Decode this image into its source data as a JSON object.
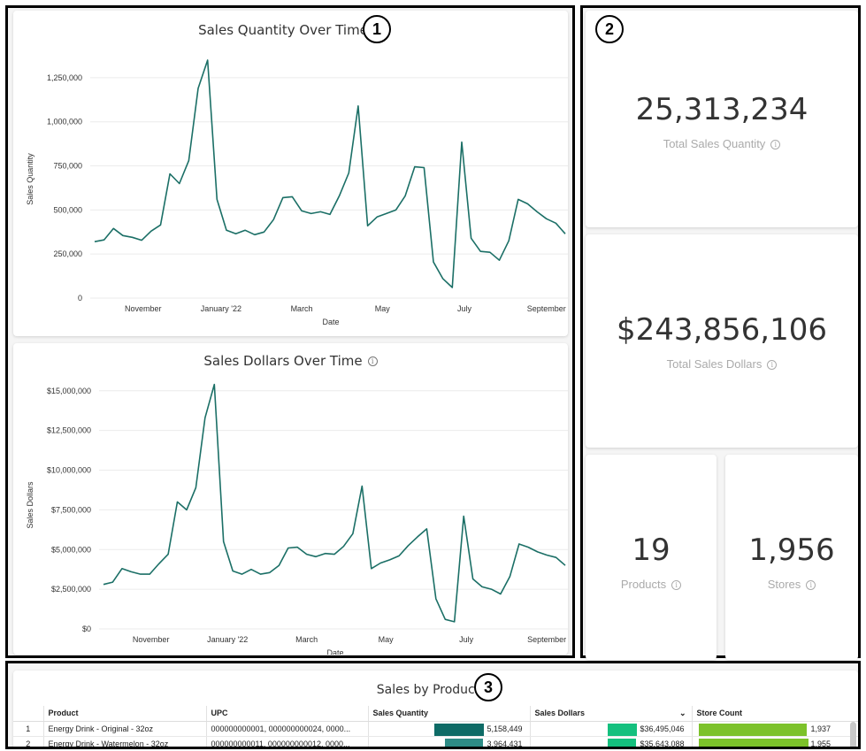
{
  "badges": [
    "1",
    "2",
    "3"
  ],
  "info_icon": "info-circle-icon",
  "charts": {
    "quantity": {
      "title": "Sales Quantity Over Time",
      "xlabel": "Date",
      "ylabel": "Sales Quantity"
    },
    "dollars": {
      "title": "Sales Dollars Over Time",
      "xlabel": "Date",
      "ylabel": "Sales Dollars"
    }
  },
  "chart_data": [
    {
      "type": "line",
      "title": "Sales Quantity Over Time",
      "xlabel": "Date",
      "ylabel": "Sales Quantity",
      "x_ticks": [
        "November",
        "January '22",
        "March",
        "May",
        "July",
        "September"
      ],
      "y_ticks": [
        "0",
        "250,000",
        "500,000",
        "750,000",
        "1,000,000",
        "1,250,000"
      ],
      "ylim": [
        0,
        1350000
      ],
      "color": "#1b6f66",
      "grid": true,
      "x": [
        "2021-10-02",
        "2021-10-09",
        "2021-10-16",
        "2021-10-23",
        "2021-10-30",
        "2021-11-06",
        "2021-11-13",
        "2021-11-20",
        "2021-11-27",
        "2021-12-04",
        "2021-12-11",
        "2021-12-18",
        "2021-12-25",
        "2022-01-01",
        "2022-01-08",
        "2022-01-15",
        "2022-01-22",
        "2022-01-29",
        "2022-02-05",
        "2022-02-12",
        "2022-02-19",
        "2022-02-26",
        "2022-03-05",
        "2022-03-12",
        "2022-03-19",
        "2022-03-26",
        "2022-04-02",
        "2022-04-09",
        "2022-04-16",
        "2022-04-23",
        "2022-04-30",
        "2022-05-07",
        "2022-05-14",
        "2022-05-21",
        "2022-05-28",
        "2022-06-04",
        "2022-06-11",
        "2022-06-18",
        "2022-06-25",
        "2022-07-02",
        "2022-07-09",
        "2022-07-16",
        "2022-07-23",
        "2022-07-30",
        "2022-08-06",
        "2022-08-13",
        "2022-08-20",
        "2022-08-27",
        "2022-09-03",
        "2022-09-10",
        "2022-09-17"
      ],
      "y": [
        320000,
        330000,
        395000,
        355000,
        345000,
        328000,
        380000,
        415000,
        705000,
        650000,
        780000,
        1190000,
        1350000,
        560000,
        385000,
        365000,
        385000,
        360000,
        375000,
        445000,
        570000,
        575000,
        495000,
        480000,
        490000,
        475000,
        580000,
        710000,
        1090000,
        410000,
        460000,
        480000,
        500000,
        580000,
        745000,
        740000,
        205000,
        110000,
        60000,
        885000,
        340000,
        265000,
        260000,
        215000,
        325000,
        560000,
        535000,
        490000,
        450000,
        425000,
        365000
      ]
    },
    {
      "type": "line",
      "title": "Sales Dollars Over Time",
      "xlabel": "Date",
      "ylabel": "Sales Dollars",
      "x_ticks": [
        "November",
        "January '22",
        "March",
        "May",
        "July",
        "September"
      ],
      "y_ticks": [
        "$0",
        "$2,500,000",
        "$5,000,000",
        "$7,500,000",
        "$10,000,000",
        "$12,500,000",
        "$15,000,000"
      ],
      "ylim": [
        0,
        15600000
      ],
      "color": "#1b6f66",
      "grid": true,
      "x": [
        "2021-10-02",
        "2021-10-09",
        "2021-10-16",
        "2021-10-23",
        "2021-10-30",
        "2021-11-06",
        "2021-11-13",
        "2021-11-20",
        "2021-11-27",
        "2021-12-04",
        "2021-12-11",
        "2021-12-18",
        "2021-12-25",
        "2022-01-01",
        "2022-01-08",
        "2022-01-15",
        "2022-01-22",
        "2022-01-29",
        "2022-02-05",
        "2022-02-12",
        "2022-02-19",
        "2022-02-26",
        "2022-03-05",
        "2022-03-12",
        "2022-03-19",
        "2022-03-26",
        "2022-04-02",
        "2022-04-09",
        "2022-04-16",
        "2022-04-23",
        "2022-04-30",
        "2022-05-07",
        "2022-05-14",
        "2022-05-21",
        "2022-05-28",
        "2022-06-04",
        "2022-06-11",
        "2022-06-18",
        "2022-06-25",
        "2022-07-02",
        "2022-07-09",
        "2022-07-16",
        "2022-07-23",
        "2022-07-30",
        "2022-08-06",
        "2022-08-13",
        "2022-08-20",
        "2022-08-27",
        "2022-09-03",
        "2022-09-10",
        "2022-09-17"
      ],
      "y": [
        2800000,
        2950000,
        3800000,
        3600000,
        3450000,
        3450000,
        4100000,
        4700000,
        8000000,
        7500000,
        8900000,
        13300000,
        15400000,
        5500000,
        3650000,
        3450000,
        3750000,
        3450000,
        3550000,
        4000000,
        5100000,
        5150000,
        4700000,
        4550000,
        4750000,
        4700000,
        5200000,
        6000000,
        9000000,
        3800000,
        4150000,
        4350000,
        4600000,
        5250000,
        5800000,
        6300000,
        1900000,
        600000,
        450000,
        7100000,
        3150000,
        2650000,
        2500000,
        2200000,
        3300000,
        5350000,
        5150000,
        4850000,
        4650000,
        4500000,
        4000000
      ]
    }
  ],
  "kpis": {
    "total_qty": {
      "value": "25,313,234",
      "label": "Total Sales Quantity"
    },
    "total_dollars": {
      "value": "$243,856,106",
      "label": "Total Sales Dollars"
    },
    "products": {
      "value": "19",
      "label": "Products"
    },
    "stores": {
      "value": "1,956",
      "label": "Stores"
    }
  },
  "table": {
    "title": "Sales by Product",
    "columns": [
      "",
      "Product",
      "UPC",
      "Sales Quantity",
      "Sales Dollars",
      "Store Count"
    ],
    "sorted_column": "Sales Dollars",
    "rows": [
      {
        "idx": "1",
        "product": "Energy Drink - Original - 32oz",
        "upc": "000000000001, 000000000024, 0000...",
        "qty": "5,158,449",
        "qty_frac": 1.0,
        "dollars": "$36,495,046",
        "dollars_frac": 1.0,
        "stores": "1,937",
        "stores_frac": 0.99
      },
      {
        "idx": "2",
        "product": "Energy Drink - Watermelon - 32oz",
        "upc": "000000000011, 000000000012, 0000...",
        "qty": "3,964,431",
        "qty_frac": 0.77,
        "dollars": "$35,643,088",
        "dollars_frac": 0.98,
        "stores": "1,955",
        "stores_frac": 1.0
      }
    ],
    "colors": {
      "qty_bar": "#0e6b66",
      "qty_bar_2": "#2e8c86",
      "dollars_bar": "#14c07e",
      "stores_bar": "#7cc22a"
    }
  }
}
